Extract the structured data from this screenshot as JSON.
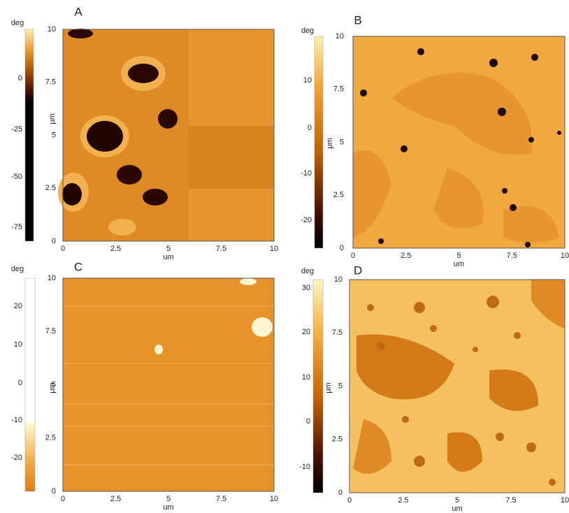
{
  "panels": [
    {
      "label": "A",
      "colorbar_unit": "deg",
      "colorbar_ticks": [
        "0",
        "-25",
        "-50",
        "-75"
      ],
      "y_axis_label": "μm",
      "y_ticks": [
        "10",
        "7.5",
        "5",
        "2.5",
        "0"
      ],
      "x_ticks": [
        "0",
        "2.5",
        "5",
        "7.5",
        "10"
      ],
      "x_axis_label": "um"
    },
    {
      "label": "B",
      "colorbar_unit": "deg",
      "colorbar_ticks": [
        "10",
        "0",
        "-10",
        "-20"
      ],
      "y_axis_label": "μm",
      "y_ticks": [
        "10",
        "7.5",
        "5",
        "2.5",
        "0"
      ],
      "x_ticks": [
        "0",
        "2.5",
        "5",
        "7.5",
        "10"
      ],
      "x_axis_label": "um"
    },
    {
      "label": "C",
      "colorbar_unit": "deg",
      "colorbar_ticks": [
        "20",
        "10",
        "0",
        "-10",
        "-20"
      ],
      "y_axis_label": "μm",
      "y_ticks": [
        "10",
        "7.5",
        "5",
        "2.5",
        "0"
      ],
      "x_ticks": [
        "0",
        "2.5",
        "5",
        "7.5",
        "10"
      ],
      "x_axis_label": "um"
    },
    {
      "label": "D",
      "colorbar_unit": "deg",
      "colorbar_ticks": [
        "30",
        "20",
        "10",
        "0",
        "-10"
      ],
      "y_axis_label": "μm",
      "y_ticks": [
        "10",
        "7.5",
        "5",
        "2.5",
        "0"
      ],
      "x_ticks": [
        "0",
        "2.5",
        "5",
        "7.5",
        "10"
      ],
      "x_axis_label": "um"
    }
  ]
}
